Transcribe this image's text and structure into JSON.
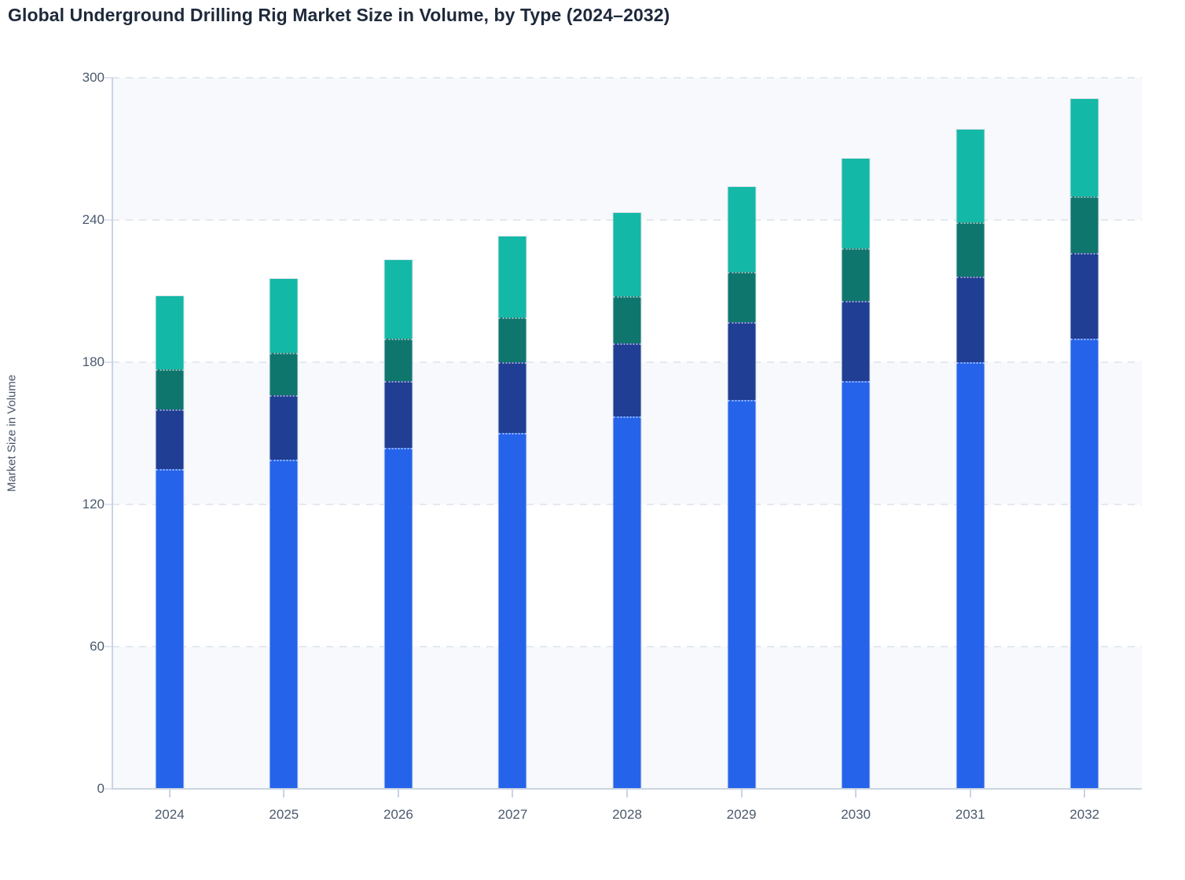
{
  "title": "Global Underground Drilling Rig Market Size in Volume, by Type (2024–2032)",
  "chart_data": {
    "type": "bar",
    "stacked": true,
    "title": "Global Underground Drilling Rig Market Size in Volume, by Type (2024–2032)",
    "xlabel": "",
    "ylabel": "Market Size in Volume",
    "ylim": [
      0,
      300
    ],
    "yticks": [
      0,
      60,
      120,
      180,
      240,
      300
    ],
    "grid": "horizontal dashed, alternating background bands",
    "legend": "none",
    "categories": [
      "2024",
      "2025",
      "2026",
      "2027",
      "2028",
      "2029",
      "2030",
      "2031",
      "2032"
    ],
    "series": [
      {
        "name": "blue (bottom segment)",
        "color": "#2563EB",
        "values": [
          135,
          139,
          144,
          150,
          157,
          164,
          172,
          180,
          190
        ]
      },
      {
        "name": "dark-blue segment",
        "color": "#203E93",
        "values": [
          25,
          27,
          28,
          30,
          31,
          33,
          34,
          36,
          36
        ]
      },
      {
        "name": "dark-teal segment",
        "color": "#0F766E",
        "values": [
          17,
          18,
          18,
          19,
          20,
          21,
          22,
          23,
          24
        ]
      },
      {
        "name": "teal (top segment)",
        "color": "#14B8A6",
        "values": [
          31,
          31,
          33,
          34,
          35,
          36,
          38,
          39,
          41
        ]
      }
    ],
    "stack_totals": [
      208,
      215,
      223,
      233,
      243,
      254,
      266,
      278,
      291
    ]
  }
}
